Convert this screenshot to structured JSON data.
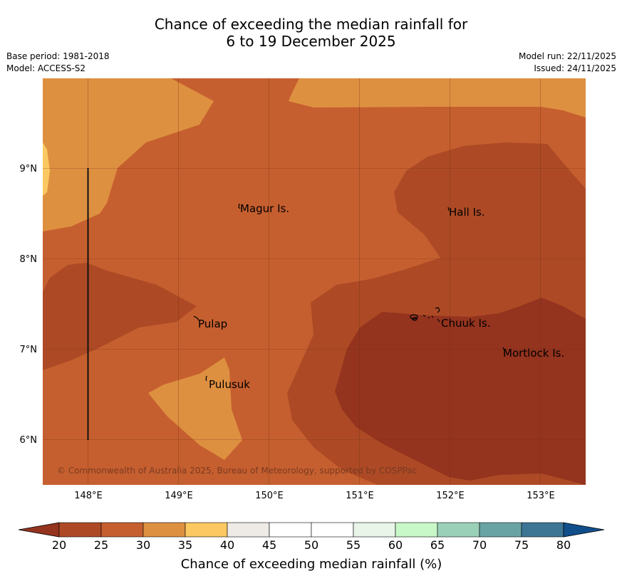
{
  "title": {
    "line1": "Chance of exceeding the median rainfall for",
    "line2": "6 to 19 December 2025"
  },
  "meta": {
    "base_period": "Base period: 1981-2018",
    "model": "Model: ACCESS-S2",
    "model_run": "Model run: 22/11/2025",
    "issued": "Issued: 24/11/2025"
  },
  "map": {
    "lon_ticks": [
      "148°E",
      "149°E",
      "150°E",
      "151°E",
      "152°E",
      "153°E"
    ],
    "lat_ticks": [
      "9°N",
      "8°N",
      "7°N",
      "6°N"
    ],
    "islands": [
      "Magur Is.",
      "Hall Is.",
      "Pulap",
      "Chuuk Is.",
      "Mortlock Is.",
      "Pulusuk"
    ],
    "copyright": "© Commonwealth of Australia 2025, Bureau of Meteorology, supported by COSPPac"
  },
  "colorbar": {
    "title": "Chance of exceeding median rainfall (%)",
    "tick_labels": [
      "20",
      "25",
      "30",
      "35",
      "40",
      "45",
      "50",
      "55",
      "60",
      "65",
      "70",
      "75",
      "80"
    ],
    "colors": {
      "under": "#94331e",
      "bins": [
        "#ad4a25",
        "#c65f2f",
        "#de9041",
        "#fcc862",
        "#eeebe6",
        "#ffffff",
        "#ffffff",
        "#e8f5e8",
        "#c8f7c8",
        "#9ad0b8",
        "#6aa3a4",
        "#3d7595"
      ],
      "over": "#114f8a"
    }
  }
}
